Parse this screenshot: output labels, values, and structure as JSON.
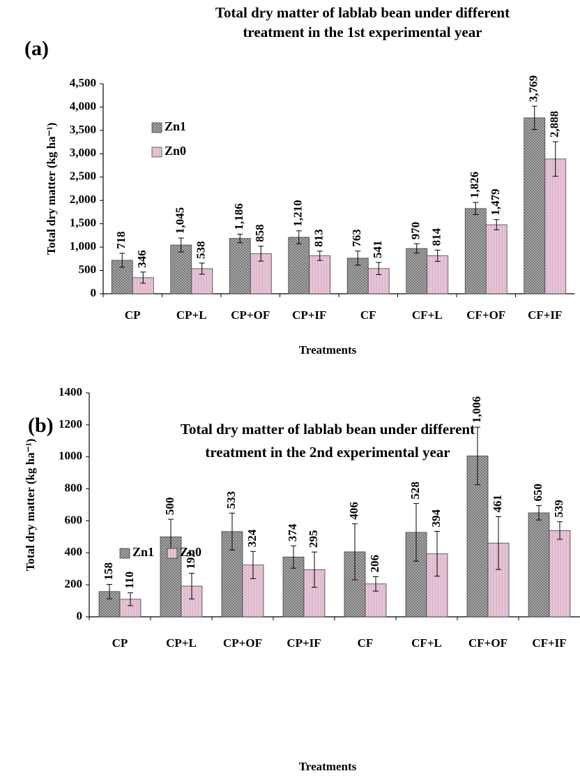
{
  "chart_data": [
    {
      "type": "bar",
      "panel_label": "(a)",
      "title": [
        "Total dry matter of lablab bean under different",
        "treatment in the 1st experimental year"
      ],
      "x_label": "Treatments",
      "y_label": "Total dry matter (kg ha⁻¹)",
      "categories": [
        "CP",
        "CP+L",
        "CP+OF",
        "CP+IF",
        "CF",
        "CF+L",
        "CF+OF",
        "CF+IF"
      ],
      "series": [
        {
          "name": "Zn1",
          "color": "#8c8c8c",
          "values": [
            718,
            1045,
            1186,
            1210,
            763,
            970,
            1826,
            3769
          ],
          "value_labels": [
            "718",
            "1,045",
            "1,186",
            "1,210",
            "763",
            "970",
            "1,826",
            "3,769"
          ],
          "errors": [
            150,
            150,
            90,
            140,
            150,
            100,
            130,
            250
          ]
        },
        {
          "name": "Zn0",
          "color": "#e6c3d6",
          "values": [
            346,
            538,
            858,
            813,
            541,
            814,
            1479,
            2888
          ],
          "value_labels": [
            "346",
            "538",
            "858",
            "813",
            "541",
            "814",
            "1,479",
            "2,888"
          ],
          "errors": [
            120,
            120,
            160,
            100,
            130,
            120,
            110,
            370
          ]
        }
      ],
      "ylim": [
        0,
        4500
      ],
      "yticks": [
        0,
        500,
        {
          "value": 1000,
          "label": "1,000"
        },
        {
          "value": 1500,
          "label": "1,500"
        },
        {
          "value": 2000,
          "label": "2,000"
        },
        {
          "value": 2500,
          "label": "2,500"
        },
        {
          "value": 3000,
          "label": "3,000"
        },
        {
          "value": 3500,
          "label": "3,500"
        },
        {
          "value": 4000,
          "label": "4,000"
        },
        {
          "value": 4500,
          "label": "4,500"
        }
      ],
      "legend": "left-vertical"
    },
    {
      "type": "bar",
      "panel_label": "(b)",
      "title": [
        "Total dry matter of lablab bean under different",
        "treatment in the 2nd experimental year"
      ],
      "x_label": "Treatments",
      "y_label": "Total dry matter (kg ha⁻¹)",
      "categories": [
        "CP",
        "CP+L",
        "CP+OF",
        "CP+IF",
        "CF",
        "CF+L",
        "CF+OF",
        "CF+IF"
      ],
      "series": [
        {
          "name": "Zn1",
          "color": "#8c8c8c",
          "values": [
            158,
            500,
            533,
            374,
            406,
            528,
            1006,
            650
          ],
          "value_labels": [
            "158",
            "500",
            "533",
            "374",
            "406",
            "528",
            "1,006",
            "650"
          ],
          "errors": [
            45,
            110,
            115,
            70,
            175,
            180,
            180,
            45
          ]
        },
        {
          "name": "Zn0",
          "color": "#e6c3d6",
          "values": [
            110,
            192,
            324,
            295,
            206,
            394,
            461,
            539
          ],
          "errors": [
            40,
            80,
            85,
            110,
            45,
            140,
            165,
            55
          ]
        }
      ],
      "ylim": [
        0,
        1400
      ],
      "yticks": [
        0,
        200,
        400,
        600,
        800,
        1000,
        1200,
        1400
      ],
      "legend": "left-horizontal"
    }
  ]
}
